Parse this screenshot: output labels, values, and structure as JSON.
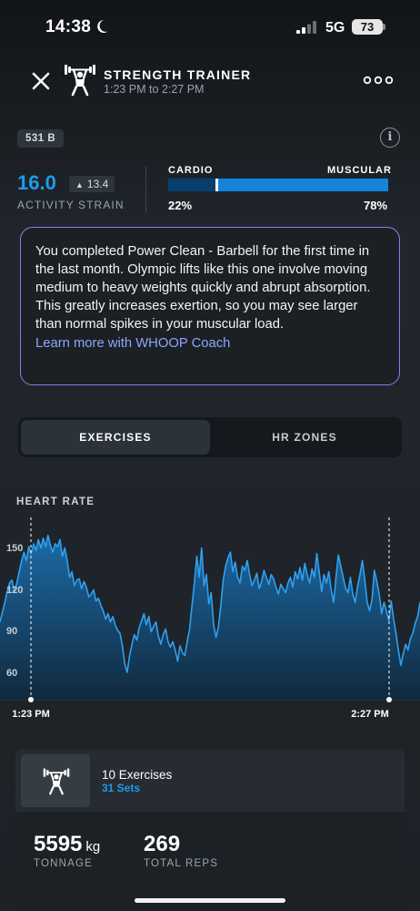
{
  "status_bar": {
    "time": "14:38",
    "network": "5G",
    "battery": "73"
  },
  "header": {
    "title": "STRENGTH TRAINER",
    "time_range": "1:23 PM to 2:27 PM"
  },
  "badge": "531 B",
  "strain": {
    "value": "16.0",
    "delta": "13.4",
    "label": "ACTIVITY STRAIN"
  },
  "load_split": {
    "left_label": "CARDIO",
    "right_label": "MUSCULAR",
    "cardio_fraction": 0.22,
    "left_pct": "22%",
    "right_pct": "78%"
  },
  "coach": {
    "message": "You completed Power Clean - Barbell for the first time in the last month. Olympic lifts like this one involve moving medium to heavy weights quickly and abrupt absorption. This greatly increases exertion, so you may see larger than normal spikes in your muscular load.",
    "link": "Learn more with WHOOP Coach"
  },
  "tabs": [
    {
      "label": "EXERCISES",
      "active": true
    },
    {
      "label": "HR ZONES",
      "active": false
    }
  ],
  "heart_rate": {
    "label": "HEART RATE",
    "y_ticks": [
      "150",
      "120",
      "90",
      "60"
    ],
    "start_time": "1:23 PM",
    "end_time": "2:27 PM"
  },
  "chart_data": {
    "type": "area",
    "x_start": "1:23 PM",
    "x_end": "2:27 PM",
    "ylabel": "HEART RATE",
    "y_ticks": [
      150,
      120,
      90,
      60
    ],
    "ylim": [
      40,
      170
    ],
    "series": [
      {
        "values": [
          96,
          103,
          110,
          118,
          124,
          126,
          117,
          124,
          132,
          140,
          146,
          140,
          150,
          145,
          152,
          147,
          155,
          149,
          156,
          150,
          158,
          151,
          146,
          152,
          150,
          155,
          143,
          149,
          140,
          128,
          132,
          122,
          126,
          127,
          120,
          125,
          121,
          114,
          116,
          119,
          111,
          113,
          108,
          104,
          98,
          102,
          96,
          100,
          94,
          90,
          88,
          79,
          66,
          60,
          72,
          80,
          87,
          83,
          92,
          97,
          102,
          94,
          100,
          89,
          93,
          96,
          86,
          80,
          87,
          91,
          82,
          78,
          82,
          76,
          68,
          79,
          74,
          72,
          82,
          91,
          108,
          124,
          143,
          128,
          149,
          122,
          130,
          109,
          117,
          94,
          85,
          92,
          108,
          126,
          136,
          142,
          146,
          132,
          139,
          128,
          124,
          136,
          133,
          140,
          130,
          122,
          126,
          131,
          120,
          125,
          133,
          128,
          123,
          130,
          127,
          121,
          116,
          123,
          120,
          117,
          124,
          128,
          121,
          132,
          127,
          135,
          126,
          138,
          130,
          124,
          134,
          128,
          145,
          132,
          118,
          130,
          124,
          132,
          119,
          110,
          128,
          144,
          136,
          128,
          120,
          117,
          128,
          116,
          110,
          122,
          130,
          140,
          126,
          110,
          104,
          112,
          133,
          125,
          116,
          102,
          110,
          104,
          97,
          111,
          98,
          88,
          76,
          65,
          73,
          80,
          76,
          84,
          88,
          95,
          100,
          110
        ]
      }
    ]
  },
  "summary": {
    "title": "10 Exercises",
    "sets": "31 Sets",
    "tonnage_value": "5595",
    "tonnage_unit": "kg",
    "tonnage_label": "TONNAGE",
    "reps_value": "269",
    "reps_label": "TOTAL REPS"
  },
  "colors": {
    "accent_blue": "#1f9bea",
    "muscular_bar": "#1683d6",
    "cardio_bar": "#0b3f6b",
    "coach_border": "#8a7fe6",
    "link": "#8fa5ff"
  }
}
